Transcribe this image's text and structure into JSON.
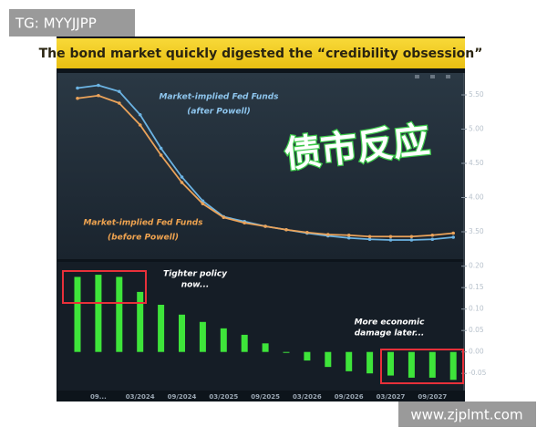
{
  "watermark_top": "TG: MYYJJPP",
  "watermark_bottom": "www.zjplmt.com",
  "overlay_text": "债市反应",
  "chart_data": [
    {
      "type": "line",
      "title": "The bond market quickly digested the “credibility obsession”",
      "categories": [
        null,
        null,
        null,
        null,
        null,
        null,
        null,
        null,
        null,
        null,
        null,
        null,
        null,
        null,
        null,
        null,
        null,
        null,
        null
      ],
      "series": [
        {
          "color": "#6cb4e4",
          "values": [
            5.6,
            5.64,
            5.55,
            5.21,
            4.72,
            4.3,
            3.95,
            3.72,
            3.65,
            3.58,
            3.53,
            3.48,
            3.44,
            3.41,
            3.39,
            3.38,
            3.38,
            3.39,
            3.42
          ]
        },
        {
          "color": "#eba35a",
          "values": [
            5.45,
            5.49,
            5.38,
            5.06,
            4.62,
            4.22,
            3.91,
            3.71,
            3.63,
            3.58,
            3.53,
            3.49,
            3.46,
            3.45,
            3.43,
            3.43,
            3.43,
            3.45,
            3.48
          ]
        }
      ],
      "annotations": [
        {
          "text": "Market-implied Fed Funds",
          "color": "#8ec6ee"
        },
        {
          "text": "(after Powell)",
          "color": "#8ec6ee"
        },
        {
          "text": "Market-implied Fed Funds",
          "color": "#f0a450"
        },
        {
          "text": "(before Powell)",
          "color": "#f0a450"
        }
      ],
      "ylim": [
        3.1,
        5.82
      ],
      "yticks": [
        {
          "value": 5.5,
          "label": "5.50"
        },
        {
          "value": 5.0,
          "label": "5.00"
        },
        {
          "value": 4.5,
          "label": "4.50"
        },
        {
          "value": 4.0,
          "label": "4.00"
        },
        {
          "value": 3.5,
          "label": "3.50"
        }
      ]
    },
    {
      "type": "bar",
      "categories": [
        null,
        "09...",
        null,
        "03/2024",
        null,
        "09/2024",
        null,
        "03/2025",
        null,
        "09/2025",
        null,
        "03/2026",
        null,
        "09/2026",
        null,
        "03/2027",
        null,
        "09/2027",
        null
      ],
      "values": [
        0.175,
        0.18,
        0.175,
        0.14,
        0.11,
        0.087,
        0.07,
        0.055,
        0.04,
        0.02,
        0.0,
        -0.02,
        -0.035,
        -0.045,
        -0.05,
        -0.055,
        -0.06,
        -0.06,
        -0.065
      ],
      "color": "#3ee43a",
      "annotations": [
        {
          "text": "Tighter policy"
        },
        {
          "text": "now..."
        },
        {
          "text": "More economic"
        },
        {
          "text": "damage later..."
        }
      ],
      "ylim": [
        -0.09,
        0.21
      ],
      "yticks": [
        {
          "value": 0.2,
          "label": "0.20"
        },
        {
          "value": 0.15,
          "label": "0.15"
        },
        {
          "value": 0.1,
          "label": "0.10"
        },
        {
          "value": 0.05,
          "label": "0.05"
        },
        {
          "value": 0.0,
          "label": "0.00"
        },
        {
          "value": -0.05,
          "label": "-0.05"
        }
      ]
    }
  ]
}
